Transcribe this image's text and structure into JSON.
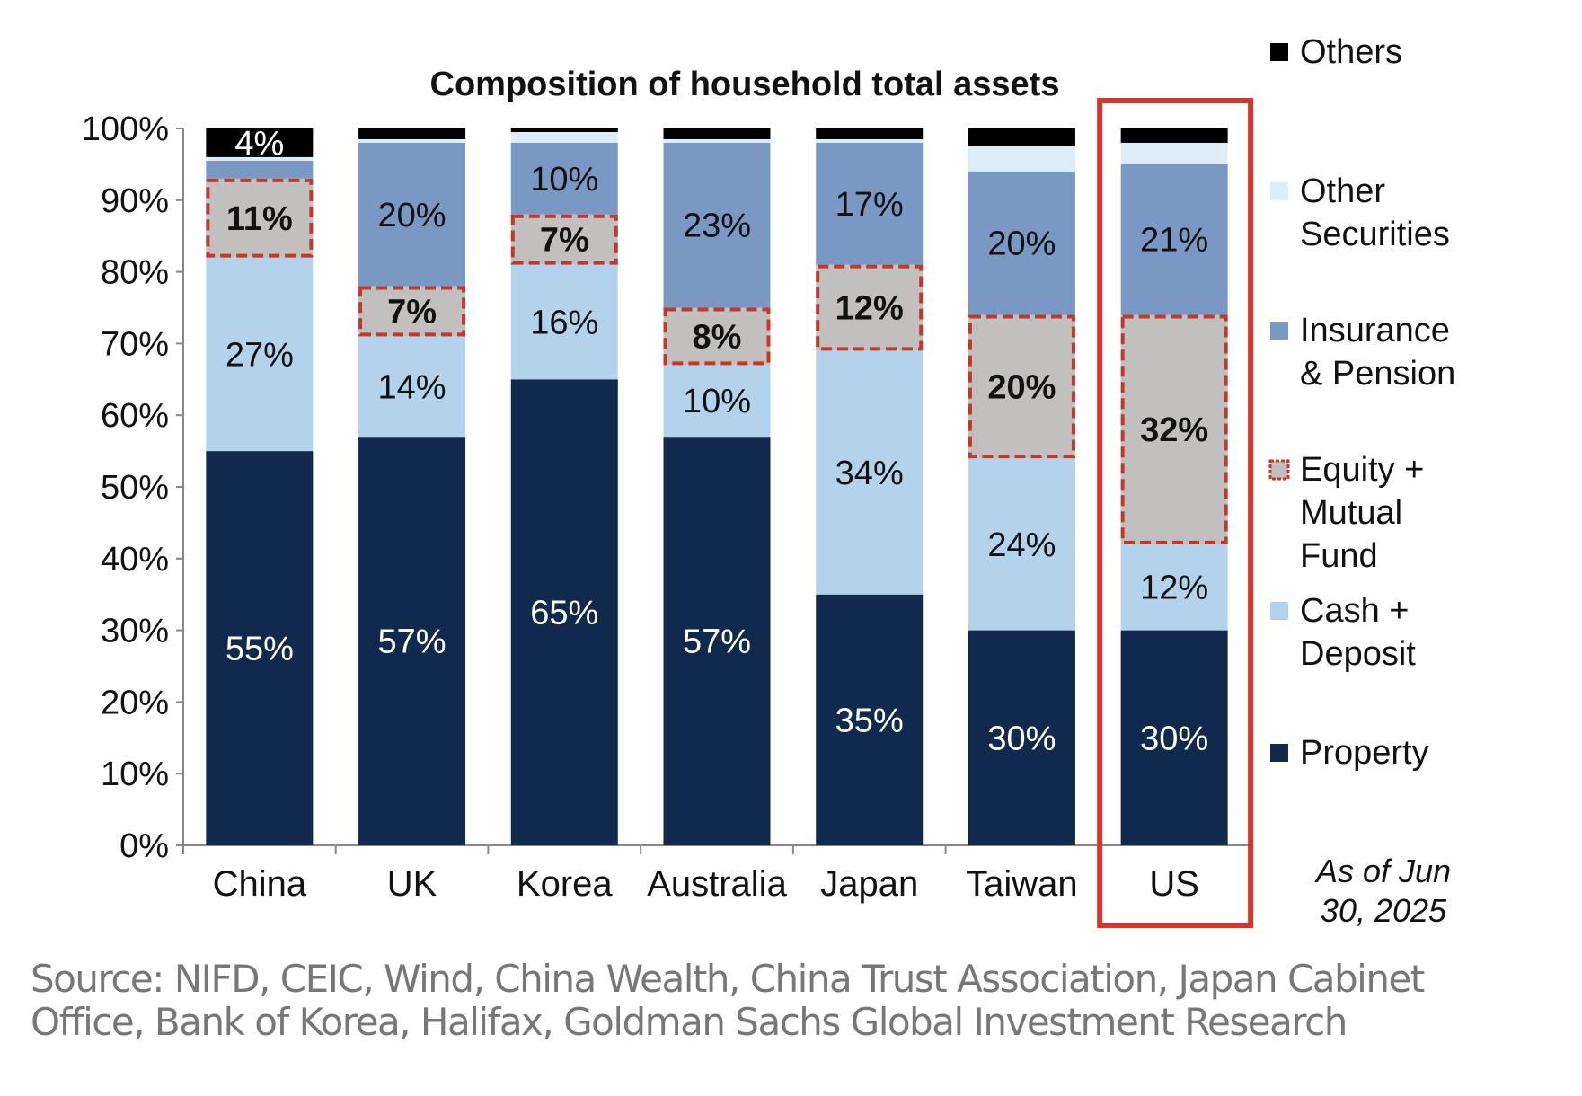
{
  "chart_data": {
    "type": "bar",
    "stacked": true,
    "title": "Composition of household total assets",
    "categories": [
      "China",
      "UK",
      "Korea",
      "Australia",
      "Japan",
      "Taiwan",
      "US"
    ],
    "ylim": [
      0,
      100
    ],
    "yticks": [
      "0%",
      "10%",
      "20%",
      "30%",
      "40%",
      "50%",
      "60%",
      "70%",
      "80%",
      "90%",
      "100%"
    ],
    "series": [
      {
        "name": "Property",
        "color": "#10294d",
        "text_color": "#ffffff",
        "values": [
          55,
          57,
          65,
          57,
          35,
          30,
          30
        ],
        "labels": [
          "55%",
          "57%",
          "65%",
          "57%",
          "35%",
          "30%",
          "30%"
        ]
      },
      {
        "name": "Cash + Deposit",
        "color": "#b3d2ec",
        "text_color": "#111111",
        "values": [
          27,
          14,
          16,
          10,
          34,
          24,
          12
        ],
        "labels": [
          "27%",
          "14%",
          "16%",
          "10%",
          "34%",
          "24%",
          "12%"
        ]
      },
      {
        "name": "Equity + Mutual Fund",
        "color": "#c2c0be",
        "text_color": "#111111",
        "highlight": "#c0392b",
        "values": [
          11,
          7,
          7,
          8,
          12,
          20,
          32
        ],
        "labels": [
          "11%",
          "7%",
          "7%",
          "8%",
          "12%",
          "20%",
          "32%"
        ]
      },
      {
        "name": "Insurance & Pension",
        "color": "#7a98c4",
        "text_color": "#111111",
        "values": [
          2.5,
          20,
          10,
          23,
          17,
          20,
          21
        ],
        "labels": [
          "",
          "20%",
          "10%",
          "23%",
          "17%",
          "20%",
          "21%"
        ]
      },
      {
        "name": "Other Securities",
        "color": "#dcecf9",
        "text_color": "#111111",
        "values": [
          0.5,
          0.5,
          1.5,
          0.5,
          0.5,
          3.5,
          3
        ],
        "labels": [
          "",
          "",
          "",
          "",
          "",
          "",
          ""
        ]
      },
      {
        "name": "Others",
        "color": "#000000",
        "text_color": "#ffffff",
        "values": [
          4,
          1.5,
          0.5,
          1.5,
          1.5,
          2.5,
          2
        ],
        "labels": [
          "4%",
          "",
          "",
          "",
          "",
          "",
          ""
        ]
      }
    ],
    "legend": [
      {
        "lines": [
          "Others"
        ],
        "color": "#000000"
      },
      {
        "lines": [
          "Other",
          "Securities"
        ],
        "color": "#dcecf9"
      },
      {
        "lines": [
          "Insurance",
          "& Pension"
        ],
        "color": "#7a98c4"
      },
      {
        "lines": [
          "Equity +",
          "Mutual",
          "Fund"
        ],
        "color": "#c2c0be",
        "dashed": true
      },
      {
        "lines": [
          "Cash +",
          "Deposit"
        ],
        "color": "#b3d2ec"
      },
      {
        "lines": [
          "Property"
        ],
        "color": "#10294d"
      }
    ],
    "legend_position": "right",
    "highlighted_category": "US",
    "highlight_color": "#d9342b",
    "note": [
      "As of Jun",
      "30, 2025"
    ],
    "grid": false
  },
  "source": {
    "line1": "Source: NIFD, CEIC, Wind, China Wealth, China Trust Association, Japan Cabinet",
    "line2": "Office, Bank of Korea, Halifax, Goldman Sachs Global Investment Research"
  }
}
